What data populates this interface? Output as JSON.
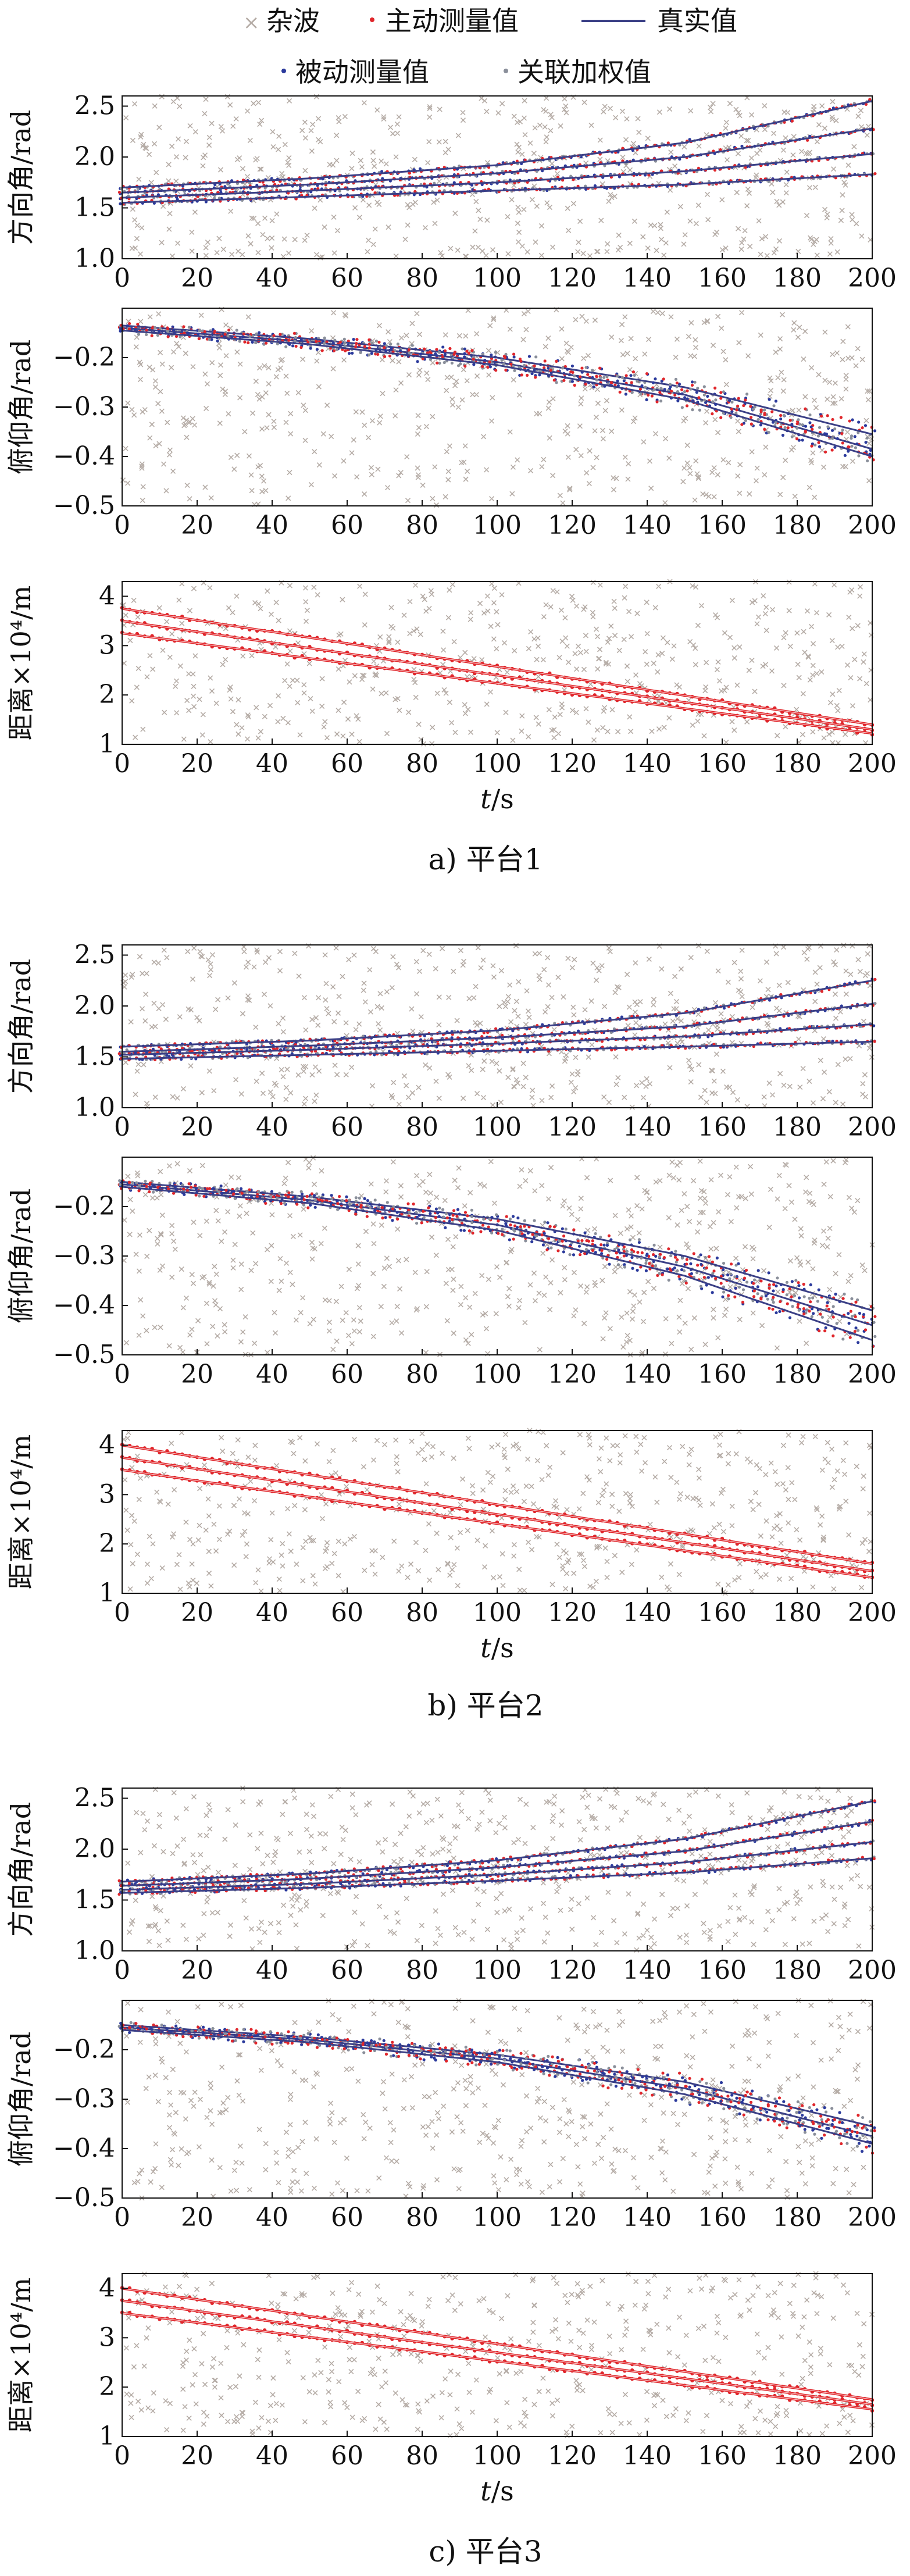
{
  "legend": {
    "clutter": "杂波",
    "active": "主动测量值",
    "truth": "真实值",
    "passive": "被动测量值",
    "fused": "关联加权值"
  },
  "colors": {
    "clutter": "#b5aca6",
    "active": "#e0262b",
    "truth": "#3a3f86",
    "passive": "#2b3a9c",
    "fused": "#8a8f9a",
    "axis": "#111111"
  },
  "chart_data": [
    {
      "panel": "a) 平台1",
      "subplots": [
        {
          "type": "scatter",
          "ylabel": "方向角/rad",
          "xlabel": "",
          "xlim": [
            0,
            200
          ],
          "ylim": [
            1.0,
            2.6
          ],
          "xticks": [
            0,
            20,
            40,
            60,
            80,
            100,
            120,
            140,
            160,
            180,
            200
          ],
          "yticks": [
            1.0,
            1.5,
            2.0,
            2.5
          ],
          "truth_tracks": [
            {
              "x": [
                0,
                50,
                100,
                150,
                200
              ],
              "y": [
                1.7,
                1.79,
                1.92,
                2.14,
                2.55
              ]
            },
            {
              "x": [
                0,
                50,
                100,
                150,
                200
              ],
              "y": [
                1.65,
                1.73,
                1.84,
                2.0,
                2.28
              ]
            },
            {
              "x": [
                0,
                50,
                100,
                150,
                200
              ],
              "y": [
                1.6,
                1.67,
                1.75,
                1.86,
                2.03
              ]
            },
            {
              "x": [
                0,
                50,
                100,
                150,
                200
              ],
              "y": [
                1.55,
                1.61,
                1.67,
                1.73,
                1.83
              ]
            }
          ]
        },
        {
          "type": "scatter",
          "ylabel": "俯仰角/rad",
          "xlabel": "",
          "xlim": [
            0,
            200
          ],
          "ylim": [
            -0.5,
            -0.1
          ],
          "xticks": [
            0,
            20,
            40,
            60,
            80,
            100,
            120,
            140,
            160,
            180,
            200
          ],
          "yticks": [
            -0.2,
            -0.3,
            -0.4,
            -0.5
          ],
          "truth_tracks": [
            {
              "x": [
                0,
                50,
                100,
                150,
                200
              ],
              "y": [
                -0.135,
                -0.162,
                -0.2,
                -0.26,
                -0.355
              ]
            },
            {
              "x": [
                0,
                50,
                100,
                150,
                200
              ],
              "y": [
                -0.14,
                -0.168,
                -0.209,
                -0.275,
                -0.385
              ]
            },
            {
              "x": [
                0,
                50,
                100,
                150,
                200
              ],
              "y": [
                -0.145,
                -0.173,
                -0.215,
                -0.285,
                -0.4
              ]
            }
          ]
        },
        {
          "type": "scatter",
          "ylabel": "距离×10⁴/m",
          "xlabel": "t/s",
          "xlim": [
            0,
            200
          ],
          "ylim": [
            1,
            4.3
          ],
          "xticks": [
            0,
            20,
            40,
            60,
            80,
            100,
            120,
            140,
            160,
            180,
            200
          ],
          "yticks": [
            1,
            2,
            3,
            4
          ],
          "truth_tracks": [
            {
              "x": [
                0,
                200
              ],
              "y": [
                3.75,
                1.4
              ]
            },
            {
              "x": [
                0,
                200
              ],
              "y": [
                3.5,
                1.3
              ]
            },
            {
              "x": [
                0,
                200
              ],
              "y": [
                3.25,
                1.22
              ]
            }
          ]
        }
      ]
    },
    {
      "panel": "b) 平台2",
      "subplots": [
        {
          "type": "scatter",
          "ylabel": "方向角/rad",
          "xlabel": "",
          "xlim": [
            0,
            200
          ],
          "ylim": [
            1.0,
            2.6
          ],
          "xticks": [
            0,
            20,
            40,
            60,
            80,
            100,
            120,
            140,
            160,
            180,
            200
          ],
          "yticks": [
            1.0,
            1.5,
            2.0,
            2.5
          ],
          "truth_tracks": [
            {
              "x": [
                0,
                50,
                100,
                150,
                200
              ],
              "y": [
                1.6,
                1.66,
                1.76,
                1.93,
                2.25
              ]
            },
            {
              "x": [
                0,
                50,
                100,
                150,
                200
              ],
              "y": [
                1.55,
                1.61,
                1.69,
                1.8,
                2.02
              ]
            },
            {
              "x": [
                0,
                50,
                100,
                150,
                200
              ],
              "y": [
                1.52,
                1.57,
                1.63,
                1.7,
                1.82
              ]
            },
            {
              "x": [
                0,
                50,
                100,
                150,
                200
              ],
              "y": [
                1.48,
                1.52,
                1.56,
                1.6,
                1.65
              ]
            }
          ]
        },
        {
          "type": "scatter",
          "ylabel": "俯仰角/rad",
          "xlabel": "",
          "xlim": [
            0,
            200
          ],
          "ylim": [
            -0.5,
            -0.1
          ],
          "xticks": [
            0,
            20,
            40,
            60,
            80,
            100,
            120,
            140,
            160,
            180,
            200
          ],
          "yticks": [
            -0.2,
            -0.3,
            -0.4,
            -0.5
          ],
          "truth_tracks": [
            {
              "x": [
                0,
                50,
                100,
                150,
                200
              ],
              "y": [
                -0.15,
                -0.18,
                -0.225,
                -0.3,
                -0.41
              ]
            },
            {
              "x": [
                0,
                50,
                100,
                150,
                200
              ],
              "y": [
                -0.155,
                -0.187,
                -0.237,
                -0.322,
                -0.44
              ]
            },
            {
              "x": [
                0,
                50,
                100,
                150,
                200
              ],
              "y": [
                -0.16,
                -0.193,
                -0.248,
                -0.34,
                -0.47
              ]
            }
          ]
        },
        {
          "type": "scatter",
          "ylabel": "距离×10⁴/m",
          "xlabel": "t/s",
          "xlim": [
            0,
            200
          ],
          "ylim": [
            1,
            4.3
          ],
          "xticks": [
            0,
            20,
            40,
            60,
            80,
            100,
            120,
            140,
            160,
            180,
            200
          ],
          "yticks": [
            1,
            2,
            3,
            4
          ],
          "truth_tracks": [
            {
              "x": [
                0,
                200
              ],
              "y": [
                4.0,
                1.6
              ]
            },
            {
              "x": [
                0,
                200
              ],
              "y": [
                3.75,
                1.45
              ]
            },
            {
              "x": [
                0,
                200
              ],
              "y": [
                3.5,
                1.32
              ]
            }
          ]
        }
      ]
    },
    {
      "panel": "c) 平台3",
      "subplots": [
        {
          "type": "scatter",
          "ylabel": "方向角/rad",
          "xlabel": "",
          "xlim": [
            0,
            200
          ],
          "ylim": [
            1.0,
            2.6
          ],
          "xticks": [
            0,
            20,
            40,
            60,
            80,
            100,
            120,
            140,
            160,
            180,
            200
          ],
          "yticks": [
            1.0,
            1.5,
            2.0,
            2.5
          ],
          "truth_tracks": [
            {
              "x": [
                0,
                50,
                100,
                150,
                200
              ],
              "y": [
                1.68,
                1.76,
                1.89,
                2.1,
                2.47
              ]
            },
            {
              "x": [
                0,
                50,
                100,
                150,
                200
              ],
              "y": [
                1.64,
                1.71,
                1.82,
                1.98,
                2.27
              ]
            },
            {
              "x": [
                0,
                50,
                100,
                150,
                200
              ],
              "y": [
                1.6,
                1.66,
                1.75,
                1.87,
                2.07
              ]
            },
            {
              "x": [
                0,
                50,
                100,
                150,
                200
              ],
              "y": [
                1.57,
                1.62,
                1.69,
                1.77,
                1.91
              ]
            }
          ]
        },
        {
          "type": "scatter",
          "ylabel": "俯仰角/rad",
          "xlabel": "",
          "xlim": [
            0,
            200
          ],
          "ylim": [
            -0.5,
            -0.1
          ],
          "xticks": [
            0,
            20,
            40,
            60,
            80,
            100,
            120,
            140,
            160,
            180,
            200
          ],
          "yticks": [
            -0.2,
            -0.3,
            -0.4,
            -0.5
          ],
          "truth_tracks": [
            {
              "x": [
                0,
                50,
                100,
                150,
                200
              ],
              "y": [
                -0.15,
                -0.175,
                -0.21,
                -0.265,
                -0.355
              ]
            },
            {
              "x": [
                0,
                50,
                100,
                150,
                200
              ],
              "y": [
                -0.155,
                -0.18,
                -0.218,
                -0.278,
                -0.375
              ]
            },
            {
              "x": [
                0,
                50,
                100,
                150,
                200
              ],
              "y": [
                -0.16,
                -0.185,
                -0.225,
                -0.29,
                -0.39
              ]
            }
          ]
        },
        {
          "type": "scatter",
          "ylabel": "距离×10⁴/m",
          "xlabel": "t/s",
          "xlim": [
            0,
            200
          ],
          "ylim": [
            1,
            4.3
          ],
          "xticks": [
            0,
            20,
            40,
            60,
            80,
            100,
            120,
            140,
            160,
            180,
            200
          ],
          "yticks": [
            1,
            2,
            3,
            4
          ],
          "truth_tracks": [
            {
              "x": [
                0,
                200
              ],
              "y": [
                4.0,
                1.75
              ]
            },
            {
              "x": [
                0,
                200
              ],
              "y": [
                3.75,
                1.65
              ]
            },
            {
              "x": [
                0,
                200
              ],
              "y": [
                3.5,
                1.55
              ]
            }
          ]
        }
      ]
    }
  ]
}
